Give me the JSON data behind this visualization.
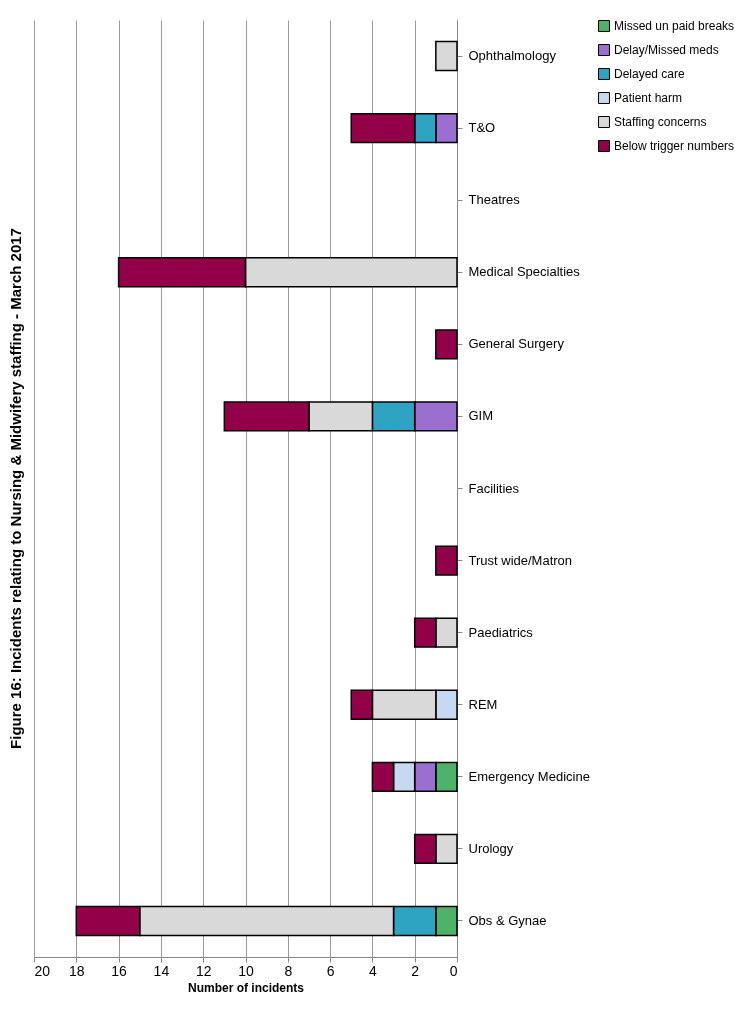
{
  "chart_data": {
    "type": "bar",
    "stacked": true,
    "orientation": "horizontal",
    "title": "Figure 16:  Incidents relating to Nursing & Midwifery staffing - March 2017",
    "xlabel": "Number of incidents",
    "categories": [
      "Ophthalmology",
      "T&O",
      "Theatres",
      "Medical Specialties",
      "General Surgery",
      "GIM",
      "Facilities",
      "Trust wide/Matron",
      "Paediatrics",
      "REM",
      "Emergency Medicine",
      "Urology",
      "Obs & Gynae"
    ],
    "series": [
      {
        "name": "Missed un paid breaks",
        "color": "#4fb26b",
        "values": [
          null,
          null,
          null,
          null,
          null,
          null,
          null,
          null,
          null,
          null,
          1,
          null,
          1
        ]
      },
      {
        "name": "Delay/Missed meds",
        "color": "#9b6fd0",
        "values": [
          null,
          1,
          null,
          null,
          null,
          2,
          null,
          null,
          null,
          null,
          1,
          null,
          null
        ]
      },
      {
        "name": "Delayed care",
        "color": "#2ea3c2",
        "values": [
          null,
          1,
          null,
          null,
          null,
          2,
          null,
          null,
          null,
          null,
          null,
          null,
          2
        ]
      },
      {
        "name": "Patient harm",
        "color": "#c6d9f1",
        "values": [
          null,
          null,
          null,
          null,
          null,
          null,
          null,
          null,
          null,
          1,
          1,
          null,
          null
        ]
      },
      {
        "name": "Staffing concerns",
        "color": "#d9d9d9",
        "values": [
          1,
          null,
          null,
          10,
          null,
          3,
          null,
          null,
          1,
          3,
          null,
          1,
          12
        ]
      },
      {
        "name": "Below trigger numbers",
        "color": "#910048",
        "values": [
          null,
          3,
          null,
          6,
          1,
          4,
          null,
          1,
          1,
          1,
          1,
          1,
          3
        ]
      }
    ],
    "xlim": [
      20,
      0
    ],
    "xticks": [
      20,
      18,
      16,
      14,
      12,
      10,
      8,
      6,
      4,
      2,
      0
    ],
    "grid": "x",
    "legend": "right"
  }
}
